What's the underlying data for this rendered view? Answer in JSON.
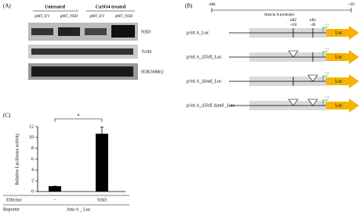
{
  "panels": {
    "a": "(A)",
    "b": "(B)",
    "c": "(C)"
  },
  "blot": {
    "groups": [
      "Untreated",
      "CuSO4 treated"
    ],
    "lanes": [
      "pMT_EV",
      "pMT_NSD",
      "pMT_EV",
      "pMT_NSD"
    ],
    "rows": [
      "NSD",
      "Actin",
      "H3K36Me2"
    ]
  },
  "promoter": {
    "start": "-488",
    "end": "+30",
    "title": "Attacin A promoter",
    "sites": [
      {
        "name": "κB2",
        "position": "-118"
      },
      {
        "name": "κB1",
        "position": "-46"
      }
    ],
    "tss": "+1",
    "reporter": "Luc",
    "constructs": [
      "pAtt A_Luc",
      "pAtt A_ΔToll_Luc",
      "pAtt A_Δimd_Luc",
      "pAtt A_ΔToll Δimd _Luc"
    ]
  },
  "chart_data": {
    "type": "bar",
    "y_label": "Relative Luciferase activity",
    "categories": [
      "-",
      "NSD"
    ],
    "values": [
      1.0,
      10.7
    ],
    "errors": [
      0,
      1.2
    ],
    "color": "#000000",
    "ylim": [
      0,
      12
    ],
    "yticks": [
      0,
      2,
      4,
      6,
      8,
      10,
      12
    ],
    "significance": "*",
    "effector_label": "Effector",
    "reporter_label": "Reporter",
    "reporter": "Atta A _ Luc"
  }
}
